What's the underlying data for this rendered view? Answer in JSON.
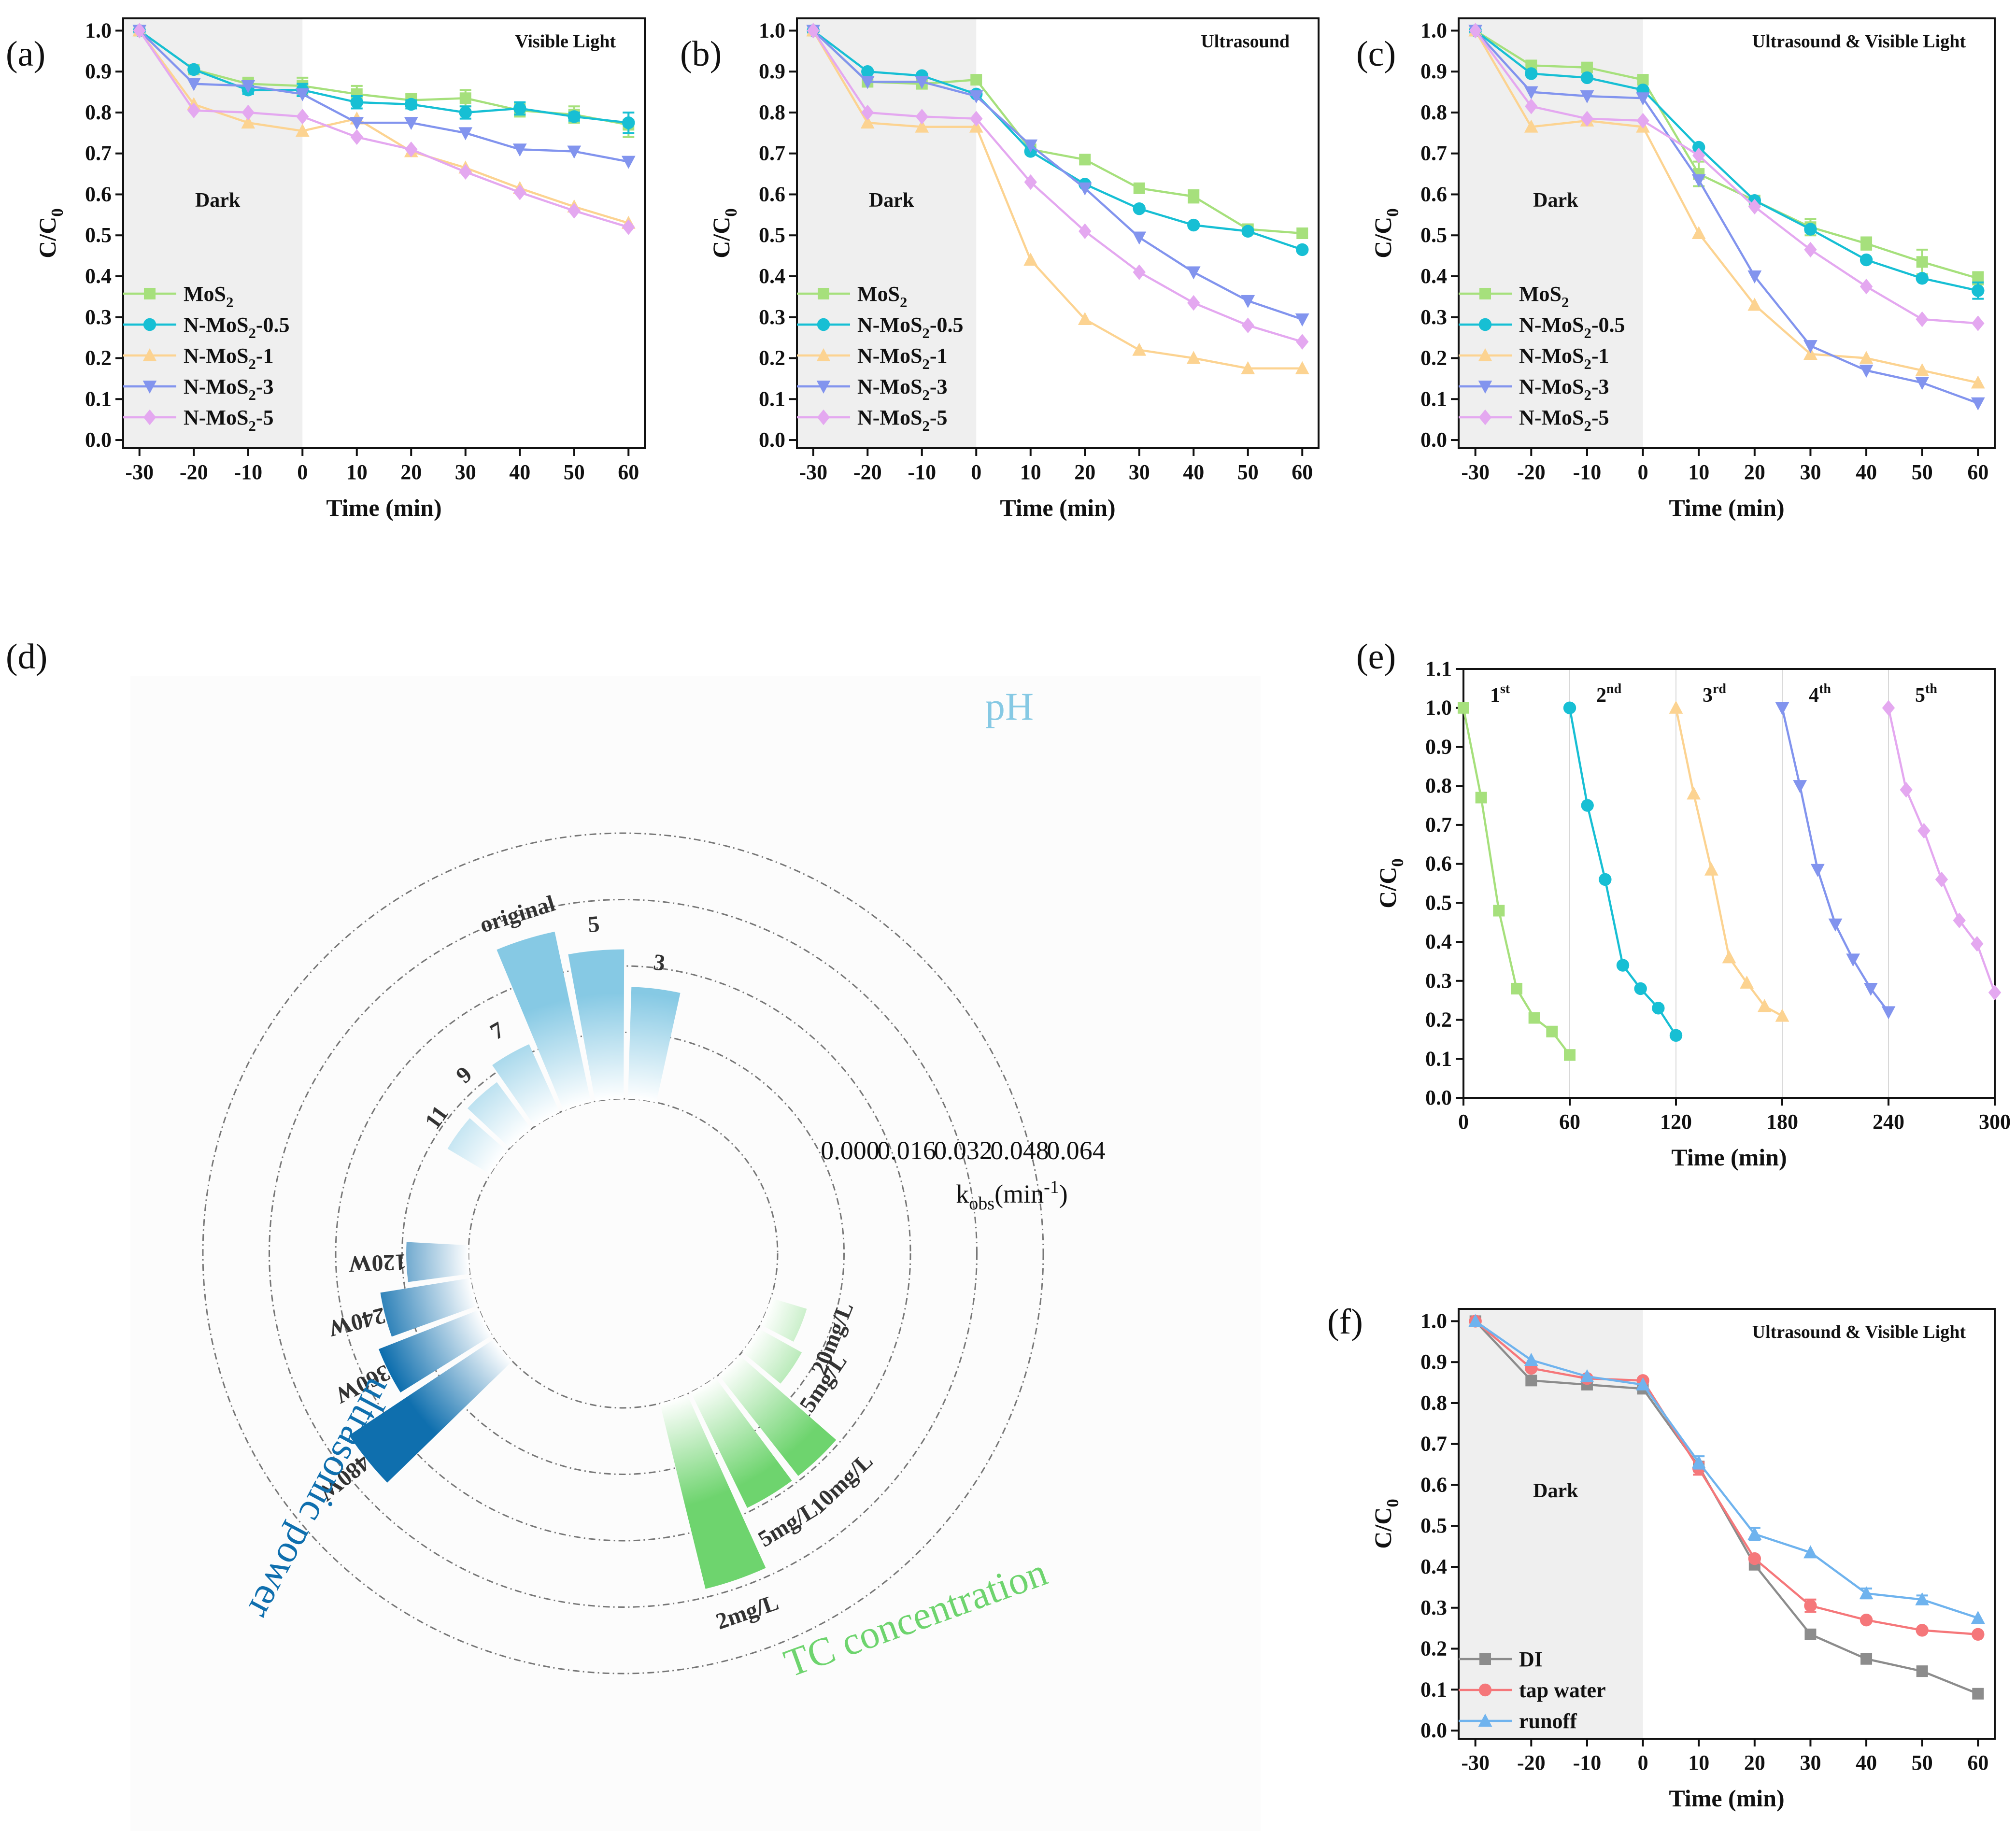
{
  "colors": {
    "MoS2": "#a6e07c",
    "N05": "#17bfd4",
    "N1": "#fcd391",
    "N3": "#8294ee",
    "N5": "#e4a8f0",
    "DI": "#8c8c8c",
    "tap": "#f5777a",
    "runoff": "#6fb3ee",
    "dark_shade": "#efefef",
    "pH": "#86c9e4",
    "TC": "#6ed46e",
    "power": "#0f6fae"
  },
  "chart_data": [
    {
      "id": "a",
      "panel_label": "(a)",
      "type": "line",
      "title": "Visible Light",
      "dark_label": "Dark",
      "xlabel": "Time (min)",
      "ylabel": "C/C0",
      "xlim": [
        -33,
        63
      ],
      "ylim": [
        -0.02,
        1.03
      ],
      "xticks": [
        -30,
        -20,
        -10,
        0,
        10,
        20,
        30,
        40,
        50,
        60
      ],
      "yticks": [
        0.0,
        0.1,
        0.2,
        0.3,
        0.4,
        0.5,
        0.6,
        0.7,
        0.8,
        0.9,
        1.0
      ],
      "dark_region": [
        -30,
        0
      ],
      "x": [
        -30,
        -20,
        -10,
        0,
        10,
        20,
        30,
        40,
        50,
        60
      ],
      "series": [
        {
          "name": "MoS2",
          "label_base": "MoS",
          "label_sub": "2",
          "label_tail": "",
          "color_key": "MoS2",
          "marker": "square",
          "values": [
            1.0,
            0.905,
            0.87,
            0.865,
            0.845,
            0.83,
            0.835,
            0.805,
            0.795,
            0.77
          ],
          "errors": [
            0,
            0,
            0.015,
            0.02,
            0.02,
            0.015,
            0.02,
            0.015,
            0.02,
            0.03
          ]
        },
        {
          "name": "N-MoS2-0.5",
          "label_base": "N-MoS",
          "label_sub": "2",
          "label_tail": "-0.5",
          "color_key": "N05",
          "marker": "circle",
          "values": [
            1.0,
            0.905,
            0.855,
            0.855,
            0.825,
            0.82,
            0.8,
            0.81,
            0.79,
            0.775
          ],
          "errors": [
            0,
            0,
            0.01,
            0.015,
            0.015,
            0.01,
            0.015,
            0.015,
            0.01,
            0.025
          ]
        },
        {
          "name": "N-MoS2-1",
          "label_base": "N-MoS",
          "label_sub": "2",
          "label_tail": "-1",
          "color_key": "N1",
          "marker": "triangle-up",
          "values": [
            1.0,
            0.82,
            0.775,
            0.755,
            0.785,
            0.705,
            0.665,
            0.615,
            0.57,
            0.53
          ],
          "errors": [
            0,
            0,
            0,
            0,
            0,
            0,
            0,
            0,
            0,
            0
          ]
        },
        {
          "name": "N-MoS2-3",
          "label_base": "N-MoS",
          "label_sub": "2",
          "label_tail": "-3",
          "color_key": "N3",
          "marker": "triangle-down",
          "values": [
            1.0,
            0.87,
            0.865,
            0.845,
            0.775,
            0.775,
            0.75,
            0.71,
            0.705,
            0.68
          ],
          "errors": [
            0,
            0,
            0,
            0,
            0,
            0,
            0,
            0,
            0,
            0
          ]
        },
        {
          "name": "N-MoS2-5",
          "label_base": "N-MoS",
          "label_sub": "2",
          "label_tail": "-5",
          "color_key": "N5",
          "marker": "diamond",
          "values": [
            1.0,
            0.805,
            0.8,
            0.79,
            0.74,
            0.71,
            0.655,
            0.605,
            0.56,
            0.52
          ],
          "errors": [
            0,
            0,
            0,
            0,
            0,
            0,
            0,
            0,
            0,
            0
          ]
        }
      ]
    },
    {
      "id": "b",
      "panel_label": "(b)",
      "type": "line",
      "title": "Ultrasound",
      "dark_label": "Dark",
      "xlabel": "Time (min)",
      "ylabel": "C/C0",
      "xlim": [
        -33,
        63
      ],
      "ylim": [
        -0.02,
        1.03
      ],
      "xticks": [
        -30,
        -20,
        -10,
        0,
        10,
        20,
        30,
        40,
        50,
        60
      ],
      "yticks": [
        0.0,
        0.1,
        0.2,
        0.3,
        0.4,
        0.5,
        0.6,
        0.7,
        0.8,
        0.9,
        1.0
      ],
      "dark_region": [
        -30,
        0
      ],
      "x": [
        -30,
        -20,
        -10,
        0,
        10,
        20,
        30,
        40,
        50,
        60
      ],
      "series": [
        {
          "name": "MoS2",
          "label_base": "MoS",
          "label_sub": "2",
          "label_tail": "",
          "color_key": "MoS2",
          "marker": "square",
          "values": [
            1.0,
            0.875,
            0.87,
            0.88,
            0.71,
            0.685,
            0.615,
            0.595,
            0.515,
            0.505
          ],
          "errors": [
            0,
            0,
            0,
            0,
            0,
            0,
            0,
            0.015,
            0,
            0
          ]
        },
        {
          "name": "N-MoS2-0.5",
          "label_base": "N-MoS",
          "label_sub": "2",
          "label_tail": "-0.5",
          "color_key": "N05",
          "marker": "circle",
          "values": [
            1.0,
            0.9,
            0.89,
            0.845,
            0.705,
            0.625,
            0.565,
            0.525,
            0.51,
            0.465
          ],
          "errors": [
            0,
            0,
            0,
            0,
            0,
            0,
            0,
            0,
            0,
            0
          ]
        },
        {
          "name": "N-MoS2-1",
          "label_base": "N-MoS",
          "label_sub": "2",
          "label_tail": "-1",
          "color_key": "N1",
          "marker": "triangle-up",
          "values": [
            1.0,
            0.775,
            0.765,
            0.765,
            0.44,
            0.295,
            0.22,
            0.2,
            0.175,
            0.175
          ],
          "errors": [
            0,
            0,
            0,
            0,
            0,
            0,
            0,
            0,
            0,
            0
          ]
        },
        {
          "name": "N-MoS2-3",
          "label_base": "N-MoS",
          "label_sub": "2",
          "label_tail": "-3",
          "color_key": "N3",
          "marker": "triangle-down",
          "values": [
            1.0,
            0.875,
            0.875,
            0.84,
            0.72,
            0.615,
            0.495,
            0.41,
            0.34,
            0.295
          ],
          "errors": [
            0,
            0,
            0,
            0,
            0,
            0,
            0,
            0,
            0,
            0
          ]
        },
        {
          "name": "N-MoS2-5",
          "label_base": "N-MoS",
          "label_sub": "2",
          "label_tail": "-5",
          "color_key": "N5",
          "marker": "diamond",
          "values": [
            1.0,
            0.8,
            0.79,
            0.785,
            0.63,
            0.51,
            0.41,
            0.335,
            0.28,
            0.24
          ],
          "errors": [
            0,
            0,
            0,
            0,
            0,
            0,
            0,
            0,
            0,
            0
          ]
        }
      ]
    },
    {
      "id": "c",
      "panel_label": "(c)",
      "type": "line",
      "title": "Ultrasound & Visible Light",
      "dark_label": "Dark",
      "xlabel": "Time (min)",
      "ylabel": "C/C0",
      "xlim": [
        -33,
        63
      ],
      "ylim": [
        -0.02,
        1.03
      ],
      "xticks": [
        -30,
        -20,
        -10,
        0,
        10,
        20,
        30,
        40,
        50,
        60
      ],
      "yticks": [
        0.0,
        0.1,
        0.2,
        0.3,
        0.4,
        0.5,
        0.6,
        0.7,
        0.8,
        0.9,
        1.0
      ],
      "dark_region": [
        -30,
        0
      ],
      "x": [
        -30,
        -20,
        -10,
        0,
        10,
        20,
        30,
        40,
        50,
        60
      ],
      "series": [
        {
          "name": "MoS2",
          "label_base": "MoS",
          "label_sub": "2",
          "label_tail": "",
          "color_key": "MoS2",
          "marker": "square",
          "values": [
            1.0,
            0.915,
            0.91,
            0.88,
            0.65,
            0.585,
            0.52,
            0.48,
            0.435,
            0.395
          ],
          "errors": [
            0,
            0,
            0,
            0,
            0.03,
            0,
            0.02,
            0.015,
            0.03,
            0.015
          ]
        },
        {
          "name": "N-MoS2-0.5",
          "label_base": "N-MoS",
          "label_sub": "2",
          "label_tail": "-0.5",
          "color_key": "N05",
          "marker": "circle",
          "values": [
            1.0,
            0.895,
            0.885,
            0.855,
            0.715,
            0.585,
            0.515,
            0.44,
            0.395,
            0.365
          ],
          "errors": [
            0,
            0,
            0,
            0,
            0,
            0,
            0,
            0,
            0,
            0.02
          ]
        },
        {
          "name": "N-MoS2-1",
          "label_base": "N-MoS",
          "label_sub": "2",
          "label_tail": "-1",
          "color_key": "N1",
          "marker": "triangle-up",
          "values": [
            1.0,
            0.765,
            0.78,
            0.765,
            0.505,
            0.33,
            0.21,
            0.2,
            0.17,
            0.14
          ],
          "errors": [
            0,
            0,
            0,
            0,
            0,
            0,
            0,
            0,
            0,
            0
          ]
        },
        {
          "name": "N-MoS2-3",
          "label_base": "N-MoS",
          "label_sub": "2",
          "label_tail": "-3",
          "color_key": "N3",
          "marker": "triangle-down",
          "values": [
            1.0,
            0.85,
            0.84,
            0.835,
            0.635,
            0.4,
            0.23,
            0.17,
            0.14,
            0.09
          ],
          "errors": [
            0,
            0,
            0,
            0,
            0,
            0,
            0,
            0,
            0,
            0
          ]
        },
        {
          "name": "N-MoS2-5",
          "label_base": "N-MoS",
          "label_sub": "2",
          "label_tail": "-5",
          "color_key": "N5",
          "marker": "diamond",
          "values": [
            1.0,
            0.815,
            0.785,
            0.78,
            0.695,
            0.57,
            0.465,
            0.375,
            0.295,
            0.285
          ],
          "errors": [
            0,
            0,
            0,
            0,
            0,
            0,
            0,
            0,
            0,
            0
          ]
        }
      ]
    },
    {
      "id": "d",
      "panel_label": "(d)",
      "type": "bar",
      "subtype": "radial-bar",
      "axis_label_base": "k",
      "axis_label_sub": "obs",
      "axis_label_tail": "(min",
      "axis_label_sup": "-1",
      "axis_label_close": ")",
      "radial_ticks": [
        "0.000",
        "0.016",
        "0.032",
        "0.048",
        "0.064"
      ],
      "rlim": [
        0.0,
        0.064
      ],
      "groups": [
        {
          "name": "pH",
          "color_key": "pH",
          "categories": [
            "original",
            "5",
            "3",
            "11",
            "9",
            "7"
          ],
          "values": [
            0.042,
            0.036,
            0.027,
            0.012,
            0.014,
            0.018
          ]
        },
        {
          "name": "TC concentration",
          "color_key": "TC",
          "categories": [
            "20mg/L",
            "15mg/L",
            "10mg/L",
            "5mg/L",
            "2mg/L"
          ],
          "values": [
            0.009,
            0.012,
            0.031,
            0.031,
            0.046
          ]
        },
        {
          "name": "ultrasonic power",
          "color_key": "power",
          "categories": [
            "480W",
            "360W",
            "240W",
            "120W"
          ],
          "values": [
            0.042,
            0.026,
            0.022,
            0.015
          ]
        }
      ]
    },
    {
      "id": "e",
      "panel_label": "(e)",
      "type": "line",
      "xlabel": "Time (min)",
      "ylabel": "C/C0",
      "xlim": [
        0,
        300
      ],
      "ylim": [
        0.0,
        1.1
      ],
      "xticks": [
        0,
        60,
        120,
        180,
        240,
        300
      ],
      "yticks": [
        0.0,
        0.1,
        0.2,
        0.3,
        0.4,
        0.5,
        0.6,
        0.7,
        0.8,
        0.9,
        1.0,
        1.1
      ],
      "cycle_lines": [
        60,
        120,
        180,
        240
      ],
      "cycles": [
        {
          "label": "1",
          "suffix": "st",
          "color_key": "MoS2",
          "marker": "square",
          "x": [
            0,
            10,
            20,
            30,
            40,
            50,
            60
          ],
          "values": [
            1.0,
            0.77,
            0.48,
            0.28,
            0.205,
            0.17,
            0.11
          ]
        },
        {
          "label": "2",
          "suffix": "nd",
          "color_key": "N05",
          "marker": "circle",
          "x": [
            60,
            70,
            80,
            90,
            100,
            110,
            120
          ],
          "values": [
            1.0,
            0.75,
            0.56,
            0.34,
            0.28,
            0.23,
            0.16
          ]
        },
        {
          "label": "3",
          "suffix": "rd",
          "color_key": "N1",
          "marker": "triangle-up",
          "x": [
            120,
            130,
            140,
            150,
            160,
            170,
            180
          ],
          "values": [
            1.0,
            0.78,
            0.585,
            0.36,
            0.295,
            0.235,
            0.21
          ]
        },
        {
          "label": "4",
          "suffix": "th",
          "color_key": "N3",
          "marker": "triangle-down",
          "x": [
            180,
            190,
            200,
            210,
            220,
            230,
            240
          ],
          "values": [
            1.0,
            0.8,
            0.585,
            0.445,
            0.355,
            0.28,
            0.22
          ]
        },
        {
          "label": "5",
          "suffix": "th",
          "color_key": "N5",
          "marker": "diamond",
          "x": [
            240,
            250,
            260,
            270,
            280,
            290,
            300
          ],
          "values": [
            1.0,
            0.79,
            0.685,
            0.56,
            0.455,
            0.395,
            0.27
          ]
        }
      ]
    },
    {
      "id": "f",
      "panel_label": "(f)",
      "type": "line",
      "title": "Ultrasound & Visible Light",
      "dark_label": "Dark",
      "xlabel": "Time (min)",
      "ylabel": "C/C0",
      "xlim": [
        -33,
        63
      ],
      "ylim": [
        -0.02,
        1.03
      ],
      "xticks": [
        -30,
        -20,
        -10,
        0,
        10,
        20,
        30,
        40,
        50,
        60
      ],
      "yticks": [
        0.0,
        0.1,
        0.2,
        0.3,
        0.4,
        0.5,
        0.6,
        0.7,
        0.8,
        0.9,
        1.0
      ],
      "dark_region": [
        -30,
        0
      ],
      "x": [
        -30,
        -20,
        -10,
        0,
        10,
        20,
        30,
        40,
        50,
        60
      ],
      "series": [
        {
          "name": "DI",
          "label_base": "DI",
          "label_sub": "",
          "label_tail": "",
          "color_key": "DI",
          "marker": "square",
          "values": [
            1.0,
            0.855,
            0.845,
            0.835,
            0.645,
            0.405,
            0.235,
            0.175,
            0.145,
            0.09
          ],
          "errors": [
            0,
            0,
            0,
            0,
            0,
            0,
            0,
            0,
            0,
            0
          ]
        },
        {
          "name": "tap water",
          "label_base": "tap water",
          "label_sub": "",
          "label_tail": "",
          "color_key": "tap",
          "marker": "circle",
          "values": [
            1.0,
            0.885,
            0.86,
            0.855,
            0.64,
            0.42,
            0.305,
            0.27,
            0.245,
            0.235
          ],
          "errors": [
            0,
            0,
            0,
            0,
            0.015,
            0,
            0.015,
            0,
            0,
            0
          ]
        },
        {
          "name": "runoff",
          "label_base": "runoff",
          "label_sub": "",
          "label_tail": "",
          "color_key": "runoff",
          "marker": "triangle-up",
          "values": [
            1.0,
            0.905,
            0.865,
            0.845,
            0.655,
            0.48,
            0.435,
            0.335,
            0.32,
            0.275
          ],
          "errors": [
            0,
            0,
            0,
            0,
            0.015,
            0.015,
            0,
            0.012,
            0.01,
            0
          ]
        }
      ]
    }
  ]
}
